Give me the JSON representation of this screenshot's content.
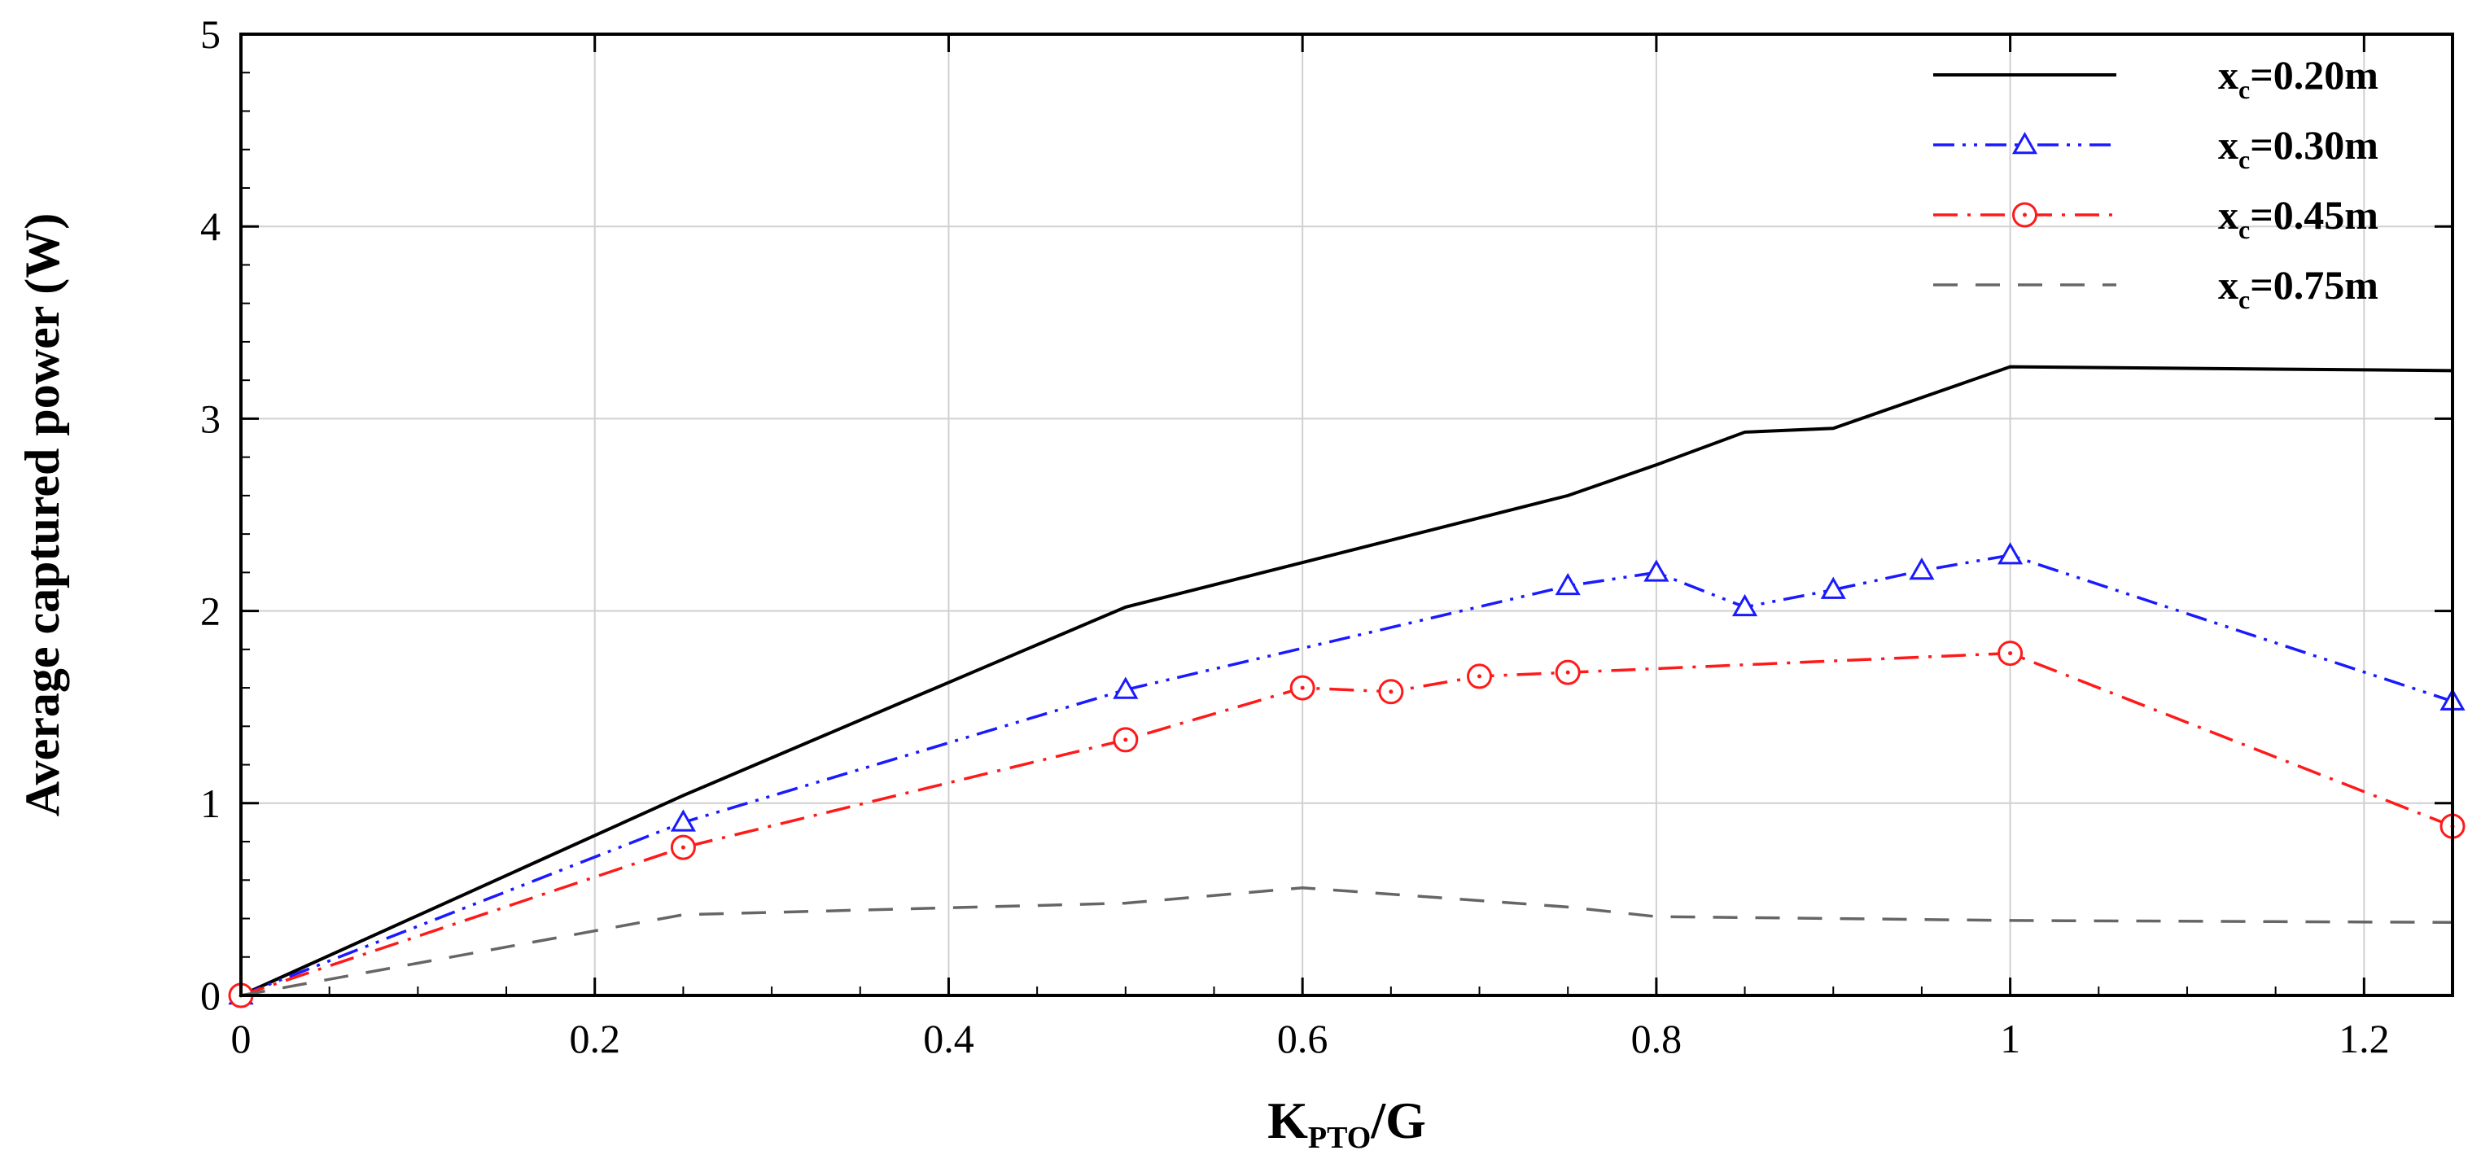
{
  "chart_data": {
    "type": "line",
    "xlabel": {
      "main": "K",
      "sub": "PTO",
      "suffix": "/G"
    },
    "ylabel": "Average captured power (W)",
    "xlim": [
      0,
      1.25
    ],
    "ylim": [
      0,
      5
    ],
    "xticks": [
      0,
      0.2,
      0.4,
      0.6,
      0.8,
      1,
      1.2
    ],
    "xtick_labels": [
      "0",
      "0.2",
      "0.4",
      "0.6",
      "0.8",
      "1",
      "1.2"
    ],
    "yticks": [
      0,
      1,
      2,
      3,
      4,
      5
    ],
    "ytick_labels": [
      "0",
      "1",
      "2",
      "3",
      "4",
      "5"
    ],
    "grid": true,
    "legend_position": "top-right",
    "series": [
      {
        "name": "x_c=0.20m",
        "label": {
          "main": "x",
          "sub": "c",
          "rest": "=0.20m"
        },
        "color": "#000000",
        "dash": "solid",
        "marker": "none",
        "x": [
          0,
          0.25,
          0.5,
          0.75,
          0.8,
          0.85,
          0.9,
          1.0,
          1.25
        ],
        "y": [
          0,
          1.04,
          2.02,
          2.6,
          2.76,
          2.93,
          2.95,
          3.27,
          3.25
        ]
      },
      {
        "name": "x_c=0.30m",
        "label": {
          "main": "x",
          "sub": "c",
          "rest": "=0.30m"
        },
        "color": "#1a1aff",
        "dash": "dashdotdot",
        "marker": "triangle",
        "x": [
          0,
          0.25,
          0.5,
          0.75,
          0.8,
          0.85,
          0.9,
          0.95,
          1.0,
          1.25
        ],
        "y": [
          0,
          0.9,
          1.59,
          2.13,
          2.2,
          2.02,
          2.11,
          2.21,
          2.29,
          1.53
        ]
      },
      {
        "name": "x_c=0.45m",
        "label": {
          "main": "x",
          "sub": "c",
          "rest": "=0.45m"
        },
        "color": "#ff1a1a",
        "dash": "dashdot",
        "marker": "circle",
        "x": [
          0,
          0.25,
          0.5,
          0.6,
          0.65,
          0.7,
          0.75,
          1.0,
          1.25
        ],
        "y": [
          0,
          0.77,
          1.33,
          1.6,
          1.58,
          1.66,
          1.68,
          1.78,
          0.88
        ]
      },
      {
        "name": "x_c=0.75m",
        "label": {
          "main": "x",
          "sub": "c",
          "rest": "=0.75m"
        },
        "color": "#666666",
        "dash": "dashed",
        "marker": "none",
        "x": [
          0,
          0.25,
          0.5,
          0.6,
          0.75,
          0.8,
          1.0,
          1.25
        ],
        "y": [
          0,
          0.42,
          0.48,
          0.56,
          0.46,
          0.41,
          0.39,
          0.38
        ]
      }
    ]
  }
}
